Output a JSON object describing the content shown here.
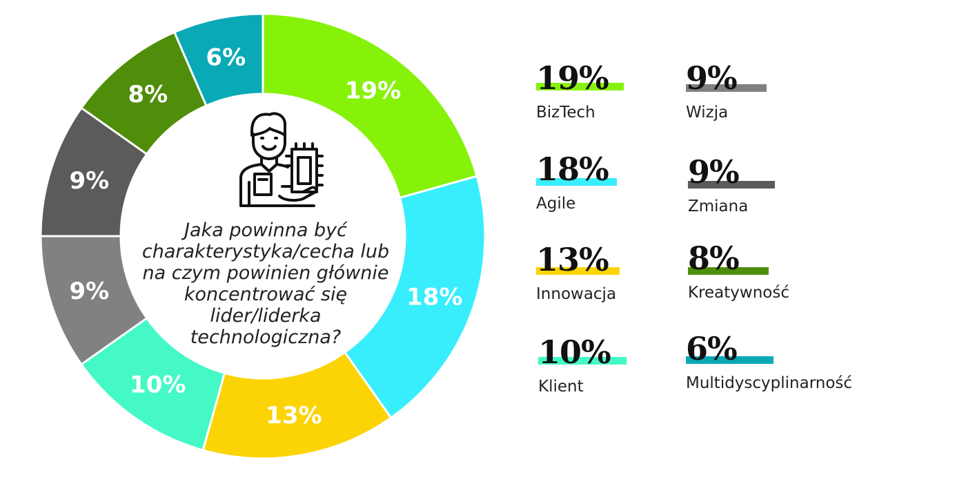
{
  "chart_data": {
    "type": "pie",
    "categories": [
      "BizTech",
      "Agile",
      "Innowacja",
      "Klient",
      "Wizja",
      "Zmiana",
      "Kreatywność",
      "Multidyscyplinarność"
    ],
    "values": [
      19,
      18,
      13,
      10,
      9,
      9,
      8,
      6
    ],
    "slice_labels": [
      "19%",
      "18%",
      "13%",
      "10%",
      "9%",
      "9%",
      "8%",
      "6%"
    ],
    "colors": [
      "#86f20a",
      "#38eefc",
      "#fcd406",
      "#44f9c6",
      "#818181",
      "#5b5b5b",
      "#4f8e0a",
      "#0aa9b6"
    ],
    "title": "Jaka powinna być charakterystyka/cecha lub na czym powinien głównie koncentrować się lider/liderka technologiczna?",
    "legend_position": "right",
    "center_icon": "engineer-holding-chip-icon"
  },
  "legend": {
    "items": [
      {
        "pct": "19%",
        "label": "BizTech",
        "color": "#86f20a"
      },
      {
        "pct": "18%",
        "label": "Agile",
        "color": "#38eefc"
      },
      {
        "pct": "13%",
        "label": "Innowacja",
        "color": "#fcd406"
      },
      {
        "pct": "10%",
        "label": "Klient",
        "color": "#44f9c6"
      },
      {
        "pct": "9%",
        "label": "Wizja",
        "color": "#818181"
      },
      {
        "pct": "9%",
        "label": "Zmiana",
        "color": "#5b5b5b"
      },
      {
        "pct": "8%",
        "label": "Kreatywność",
        "color": "#4f8e0a"
      },
      {
        "pct": "6%",
        "label": "Multidyscyplinarność",
        "color": "#0aa9b6"
      }
    ]
  }
}
